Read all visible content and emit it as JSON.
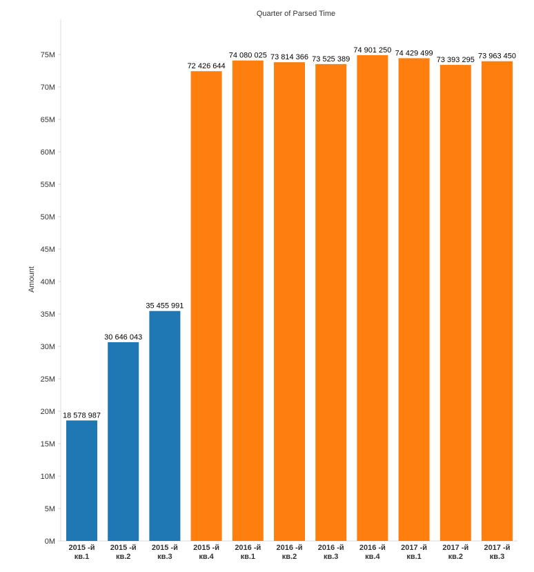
{
  "chart_data": {
    "type": "bar",
    "title": "Quarter of Parsed Time",
    "ylabel": "Amount",
    "xlabel": "",
    "ylim": [
      0,
      80000000
    ],
    "yticks": [
      {
        "value": 0,
        "label": "0M"
      },
      {
        "value": 5000000,
        "label": "5M"
      },
      {
        "value": 10000000,
        "label": "10M"
      },
      {
        "value": 15000000,
        "label": "15M"
      },
      {
        "value": 20000000,
        "label": "20M"
      },
      {
        "value": 25000000,
        "label": "25M"
      },
      {
        "value": 30000000,
        "label": "30M"
      },
      {
        "value": 35000000,
        "label": "35M"
      },
      {
        "value": 40000000,
        "label": "40M"
      },
      {
        "value": 45000000,
        "label": "45M"
      },
      {
        "value": 50000000,
        "label": "50M"
      },
      {
        "value": 55000000,
        "label": "55M"
      },
      {
        "value": 60000000,
        "label": "60M"
      },
      {
        "value": 65000000,
        "label": "65M"
      },
      {
        "value": 70000000,
        "label": "70M"
      },
      {
        "value": 75000000,
        "label": "75M"
      }
    ],
    "grid": false,
    "colors": {
      "group_a": "#1f77b4",
      "group_b": "#ff7f0e"
    },
    "bars": [
      {
        "category": [
          "2015 -й",
          "кв.1"
        ],
        "value": 18578987,
        "label": "18 578 987",
        "color": "group_a"
      },
      {
        "category": [
          "2015 -й",
          "кв.2"
        ],
        "value": 30646043,
        "label": "30 646 043",
        "color": "group_a"
      },
      {
        "category": [
          "2015 -й",
          "кв.3"
        ],
        "value": 35455991,
        "label": "35 455 991",
        "color": "group_a"
      },
      {
        "category": [
          "2015 -й",
          "кв.4"
        ],
        "value": 72426644,
        "label": "72 426 644",
        "color": "group_b"
      },
      {
        "category": [
          "2016 -й",
          "кв.1"
        ],
        "value": 74080025,
        "label": "74 080 025",
        "color": "group_b"
      },
      {
        "category": [
          "2016 -й",
          "кв.2"
        ],
        "value": 73814366,
        "label": "73 814 366",
        "color": "group_b"
      },
      {
        "category": [
          "2016 -й",
          "кв.3"
        ],
        "value": 73525389,
        "label": "73 525 389",
        "color": "group_b"
      },
      {
        "category": [
          "2016 -й",
          "кв.4"
        ],
        "value": 74901250,
        "label": "74 901 250",
        "color": "group_b"
      },
      {
        "category": [
          "2017 -й",
          "кв.1"
        ],
        "value": 74429499,
        "label": "74 429 499",
        "color": "group_b"
      },
      {
        "category": [
          "2017 -й",
          "кв.2"
        ],
        "value": 73393295,
        "label": "73 393 295",
        "color": "group_b"
      },
      {
        "category": [
          "2017 -й",
          "кв.3"
        ],
        "value": 73963450,
        "label": "73 963 450",
        "color": "group_b"
      }
    ]
  }
}
